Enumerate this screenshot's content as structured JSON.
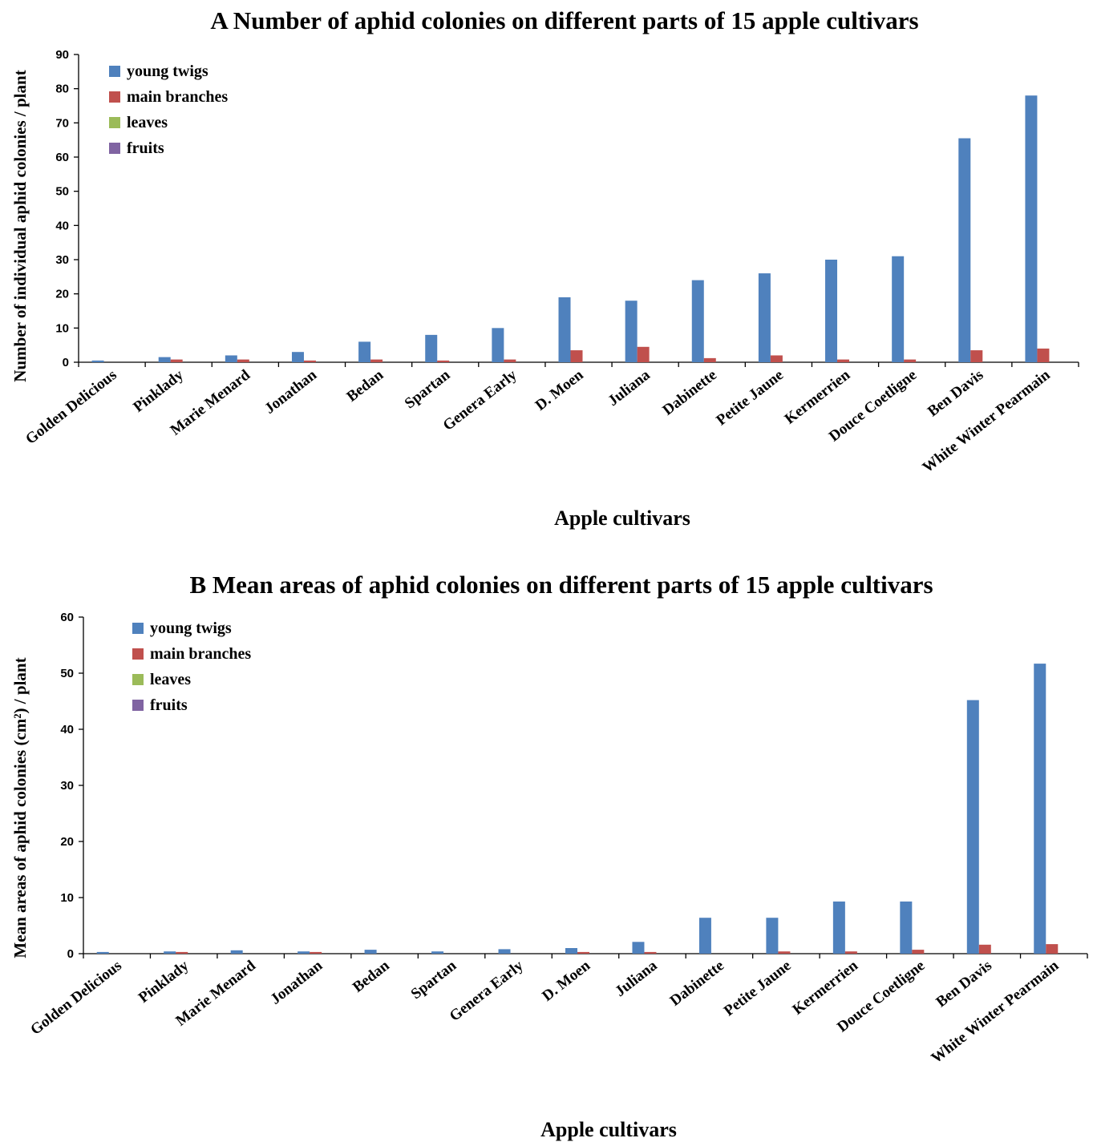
{
  "chart_data": [
    {
      "type": "bar",
      "title": "A   Number of aphid colonies on different parts of 15 apple cultivars",
      "xlabel": "Apple cultivars",
      "ylabel": "Number of individual aphid colonies / plant",
      "ylim": [
        0,
        90
      ],
      "yticks": [
        0,
        10,
        20,
        30,
        40,
        50,
        60,
        70,
        80,
        90
      ],
      "legend_position": "top-left",
      "grid": false,
      "categories": [
        "Golden Delicious",
        "Pinklady",
        "Marie Menard",
        "Jonathan",
        "Bedan",
        "Spartan",
        "Genera Early",
        "D. Moen",
        "Juliana",
        "Dabinette",
        "Petite Jaune",
        "Kermerrien",
        "Douce Coetligne",
        "Ben Davis",
        "White Winter Pearmain"
      ],
      "series": [
        {
          "name": "young twigs",
          "color": "#4F81BD",
          "values": [
            0.5,
            1.5,
            2,
            3,
            6,
            8,
            10,
            19,
            18,
            24,
            26,
            30,
            31,
            65.5,
            78
          ]
        },
        {
          "name": "main branches",
          "color": "#C0504D",
          "values": [
            0,
            0.8,
            0.8,
            0.5,
            0.8,
            0.5,
            0.8,
            3.5,
            4.5,
            1.2,
            2,
            0.8,
            0.8,
            3.5,
            4
          ]
        },
        {
          "name": "leaves",
          "color": "#9BBB59",
          "values": [
            0,
            0,
            0,
            0,
            0,
            0,
            0,
            0,
            0,
            0,
            0,
            0,
            0,
            0,
            0
          ]
        },
        {
          "name": "fruits",
          "color": "#8064A2",
          "values": [
            0,
            0,
            0,
            0,
            0,
            0,
            0,
            0,
            0,
            0,
            0,
            0,
            0,
            0,
            0
          ]
        }
      ]
    },
    {
      "type": "bar",
      "title": "B   Mean areas of aphid colonies on different parts of 15 apple cultivars",
      "xlabel": "Apple cultivars",
      "ylabel": "Mean areas of aphid colonies (cm²) / plant",
      "ylim": [
        0,
        60
      ],
      "yticks": [
        0,
        10,
        20,
        30,
        40,
        50,
        60
      ],
      "legend_position": "top-left",
      "grid": false,
      "categories": [
        "Golden Delicious",
        "Pinklady",
        "Marie Menard",
        "Jonathan",
        "Bedan",
        "Spartan",
        "Genera Early",
        "D. Moen",
        "Juliana",
        "Dabinette",
        "Petite Jaune",
        "Kermerrien",
        "Douce Coetligne",
        "Ben Davis",
        "White Winter Pearmain"
      ],
      "series": [
        {
          "name": "young twigs",
          "color": "#4F81BD",
          "values": [
            0.3,
            0.4,
            0.6,
            0.4,
            0.7,
            0.4,
            0.8,
            1,
            2.1,
            6.4,
            6.4,
            9.3,
            9.3,
            45.2,
            51.7
          ]
        },
        {
          "name": " main branches",
          "color": "#C0504D",
          "values": [
            0,
            0.3,
            0,
            0.3,
            0,
            0,
            0,
            0.3,
            0.3,
            0,
            0.4,
            0.4,
            0.7,
            1.6,
            1.7
          ]
        },
        {
          "name": "leaves",
          "color": "#9BBB59",
          "values": [
            0,
            0,
            0,
            0,
            0,
            0,
            0,
            0,
            0,
            0,
            0,
            0,
            0,
            0,
            0
          ]
        },
        {
          "name": "fruits",
          "color": "#8064A2",
          "values": [
            0,
            0,
            0,
            0,
            0,
            0,
            0,
            0,
            0,
            0,
            0,
            0,
            0,
            0,
            0
          ]
        }
      ]
    }
  ]
}
